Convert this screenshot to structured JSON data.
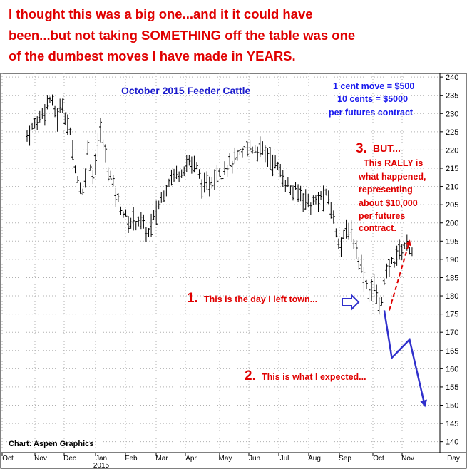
{
  "headline": {
    "lines": [
      "I thought this was a big one...and it it could have",
      "been...but not taking SOMETHING off the table was one",
      "of the dumbest moves I have made in YEARS."
    ]
  },
  "chart_data": {
    "type": "bar",
    "subtype": "ohlc",
    "title": "October 2015 Feeder Cattle",
    "credit": "Chart: Aspen Graphics",
    "ylim": [
      137,
      241
    ],
    "y_ticks": [
      140,
      145,
      150,
      155,
      160,
      165,
      170,
      175,
      180,
      185,
      190,
      195,
      200,
      205,
      210,
      215,
      220,
      225,
      230,
      235,
      240
    ],
    "x_months": [
      "Oct",
      "Nov",
      "Dec",
      "Jan",
      "Feb",
      "Mar",
      "Apr",
      "May",
      "Jun",
      "Jul",
      "Aug",
      "Sep",
      "Oct",
      "Nov",
      "Day"
    ],
    "x_year_label": "2015",
    "grid": true,
    "legend": "none",
    "bar_color": "#000000",
    "path_anchors": [
      {
        "t": 0,
        "v": 224
      },
      {
        "t": 5,
        "v": 229
      },
      {
        "t": 9,
        "v": 234
      },
      {
        "t": 12,
        "v": 229
      },
      {
        "t": 14,
        "v": 233
      },
      {
        "t": 17,
        "v": 224
      },
      {
        "t": 20,
        "v": 212
      },
      {
        "t": 22,
        "v": 208
      },
      {
        "t": 24,
        "v": 220
      },
      {
        "t": 26,
        "v": 213
      },
      {
        "t": 29,
        "v": 225
      },
      {
        "t": 32,
        "v": 215
      },
      {
        "t": 36,
        "v": 206
      },
      {
        "t": 40,
        "v": 200
      },
      {
        "t": 44,
        "v": 201
      },
      {
        "t": 48,
        "v": 197
      },
      {
        "t": 52,
        "v": 205
      },
      {
        "t": 56,
        "v": 212
      },
      {
        "t": 60,
        "v": 214
      },
      {
        "t": 64,
        "v": 217
      },
      {
        "t": 67,
        "v": 215
      },
      {
        "t": 70,
        "v": 209
      },
      {
        "t": 73,
        "v": 212
      },
      {
        "t": 76,
        "v": 215
      },
      {
        "t": 80,
        "v": 216
      },
      {
        "t": 84,
        "v": 218
      },
      {
        "t": 88,
        "v": 221
      },
      {
        "t": 92,
        "v": 220
      },
      {
        "t": 96,
        "v": 218
      },
      {
        "t": 100,
        "v": 214
      },
      {
        "t": 104,
        "v": 209
      },
      {
        "t": 108,
        "v": 208
      },
      {
        "t": 112,
        "v": 205
      },
      {
        "t": 116,
        "v": 207
      },
      {
        "t": 119,
        "v": 207
      },
      {
        "t": 122,
        "v": 198
      },
      {
        "t": 124,
        "v": 194
      },
      {
        "t": 127,
        "v": 199
      },
      {
        "t": 129,
        "v": 195
      },
      {
        "t": 132,
        "v": 188
      },
      {
        "t": 135,
        "v": 181
      },
      {
        "t": 137,
        "v": 183
      },
      {
        "t": 139,
        "v": 177
      },
      {
        "t": 141,
        "v": 183
      },
      {
        "t": 143,
        "v": 188
      },
      {
        "t": 145,
        "v": 190
      },
      {
        "t": 147,
        "v": 192
      },
      {
        "t": 149,
        "v": 194
      },
      {
        "t": 152,
        "v": 193
      }
    ],
    "annotations": {
      "contract_note": [
        "1 cent move = $500",
        "10 cents = $5000",
        "per futures contract"
      ],
      "rally_num": "3.",
      "rally_head": "BUT...",
      "rally_lines": [
        "This RALLY is",
        "what happened,",
        "representing",
        "about $10,000",
        "per futures",
        "contract."
      ],
      "left_num": "1.",
      "left_text": "This is the day I left town...",
      "expect_num": "2.",
      "expect_text": "This is what I expected...",
      "expected_path": [
        {
          "t": 141,
          "v": 176
        },
        {
          "t": 144,
          "v": 163
        },
        {
          "t": 151,
          "v": 168
        },
        {
          "t": 157,
          "v": 150
        }
      ],
      "rally_arrow": [
        {
          "t": 143,
          "v": 176
        },
        {
          "t": 151,
          "v": 195
        }
      ],
      "colors": {
        "red": "#e00000",
        "blue": "#3030cc"
      }
    }
  }
}
